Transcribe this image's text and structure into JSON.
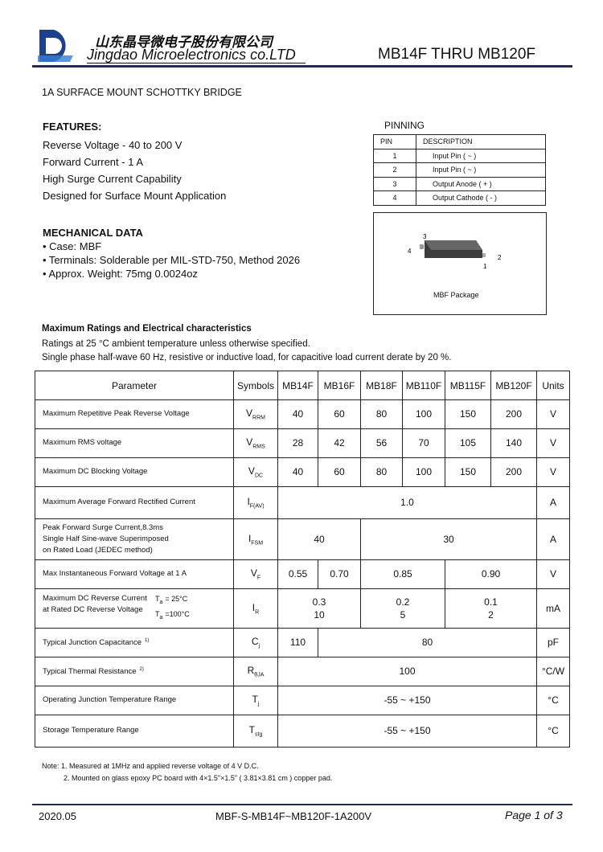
{
  "header": {
    "company_cn": "山东晶导微电子股份有限公司",
    "company_en": "Jingdao Microelectronics co.LTD",
    "part_range": "MB14F  THRU  MB120F"
  },
  "subtitle": "1A SURFACE MOUNT SCHOTTKY BRIDGE",
  "features": {
    "title": "FEATURES:",
    "items": [
      "Reverse Voltage - 40 to 200 V",
      "Forward Current - 1 A",
      "High Surge Current Capability",
      "Designed for Surface Mount Application"
    ]
  },
  "mechanical": {
    "title": "MECHANICAL DATA",
    "items": [
      "• Case: MBF",
      "• Terminals: Solderable per MIL-STD-750, Method 2026",
      "• Approx. Weight: 75mg   0.0024oz"
    ]
  },
  "pinning": {
    "title": "PINNING",
    "headers": [
      "PIN",
      "DESCRIPTION"
    ],
    "rows": [
      [
        "1",
        "Input Pin ( ~ )"
      ],
      [
        "2",
        "Input Pin ( ~ )"
      ],
      [
        "3",
        "Output Anode ( + )"
      ],
      [
        "4",
        "Output Cathode ( - )"
      ]
    ]
  },
  "package": {
    "pins": [
      "3",
      "4",
      "2",
      "1"
    ],
    "caption": "MBF Package"
  },
  "ratings": {
    "title": "Maximum Ratings and Electrical characteristics",
    "lines": [
      "Ratings at 25 °C ambient temperature unless otherwise specified.",
      "Single phase half-wave 60 Hz, resistive or inductive load, for capacitive load current derate by 20 %."
    ]
  },
  "table": {
    "headers": [
      "Parameter",
      "Symbols",
      "MB14F",
      "MB16F",
      "MB18F",
      "MB110F",
      "MB115F",
      "MB120F",
      "Units"
    ],
    "rows": [
      {
        "parameter": [
          "Maximum Repetitive Peak Reverse Voltage"
        ],
        "symbol": {
          "main": "V",
          "sub": "RRM"
        },
        "values": [
          [
            "40"
          ],
          [
            "60"
          ],
          [
            "80"
          ],
          [
            "100"
          ],
          [
            "150"
          ],
          [
            "200"
          ]
        ],
        "unit": "V"
      },
      {
        "parameter": [
          "Maximum RMS voltage"
        ],
        "symbol": {
          "main": "V",
          "sub": "RMS"
        },
        "values": [
          [
            "28"
          ],
          [
            "42"
          ],
          [
            "56"
          ],
          [
            "70"
          ],
          [
            "105"
          ],
          [
            "140"
          ]
        ],
        "unit": "V"
      },
      {
        "parameter": [
          "Maximum DC Blocking Voltage"
        ],
        "symbol": {
          "main": "V",
          "sub": "DC"
        },
        "values": [
          [
            "40"
          ],
          [
            "60"
          ],
          [
            "80"
          ],
          [
            "100"
          ],
          [
            "150"
          ],
          [
            "200"
          ]
        ],
        "unit": "V"
      },
      {
        "parameter": [
          "Maximum Average Forward Rectified Current"
        ],
        "symbol": {
          "main": "I",
          "sub": "F(AV)"
        },
        "values": [
          [
            "1.0"
          ]
        ],
        "unit": "A"
      },
      {
        "parameter": [
          "Peak Forward Surge Current,8.3ms",
          "Single Half Sine-wave Superimposed",
          "on Rated Load (JEDEC method)"
        ],
        "symbol": {
          "main": "I",
          "sub": "FSM"
        },
        "values": [
          [
            "40"
          ],
          [
            "30"
          ]
        ],
        "unit": "A"
      },
      {
        "parameter": [
          "Max Instantaneous Forward Voltage at 1 A"
        ],
        "symbol": {
          "main": "V",
          "sub": "F"
        },
        "values": [
          [
            "0.55"
          ],
          [
            "0.70"
          ],
          [
            "0.85"
          ],
          [
            "0.90"
          ]
        ],
        "unit": "V"
      },
      {
        "parameter": [
          "Maximum DC Reverse Current",
          "at Rated DC Reverse Voltage"
        ],
        "conditions": [
          {
            "symbol": "T",
            "sub": "a",
            "value": "= 25°C"
          },
          {
            "symbol": "T",
            "sub": "a",
            "value": "=100°C"
          }
        ],
        "symbol": {
          "main": "I",
          "sub": "R"
        },
        "values": [
          [
            "0.3",
            "10"
          ],
          [
            "0.2",
            "5"
          ],
          [
            "0.1",
            "2"
          ]
        ],
        "unit": "mA"
      },
      {
        "parameter": [
          "Typical Junction Capacitance"
        ],
        "note": "1)",
        "symbol": {
          "main": "C",
          "sub": "j"
        },
        "values": [
          [
            "110"
          ],
          [
            "80"
          ]
        ],
        "unit": "pF"
      },
      {
        "parameter": [
          "Typical Thermal Resistance"
        ],
        "note": "2)",
        "symbol": {
          "main": "R",
          "sub": "θJA"
        },
        "values": [
          [
            "100"
          ]
        ],
        "unit": "°C/W"
      },
      {
        "parameter": [
          "Operating Junction Temperature Range"
        ],
        "symbol": {
          "main": "T",
          "sub": "j"
        },
        "values": [
          [
            "-55 ~ +150"
          ]
        ],
        "unit": "°C"
      },
      {
        "parameter": [
          "Storage Temperature Range"
        ],
        "symbol": {
          "main": "T",
          "sub": "stg"
        },
        "values": [
          [
            "-55 ~ +150"
          ]
        ],
        "unit": "°C"
      }
    ]
  },
  "notes": [
    "Note:  1. Measured at 1MHz and applied reverse voltage of 4 V D.C.",
    "2. Mounted on glass epoxy PC board with 4×1.5\"×1.5\" ( 3.81×3.81 cm ) copper pad."
  ],
  "footer": {
    "date": "2020.05",
    "doc_code": "MBF-S-MB14F~MB120F-1A200V",
    "page": "Page 1 of 3"
  }
}
